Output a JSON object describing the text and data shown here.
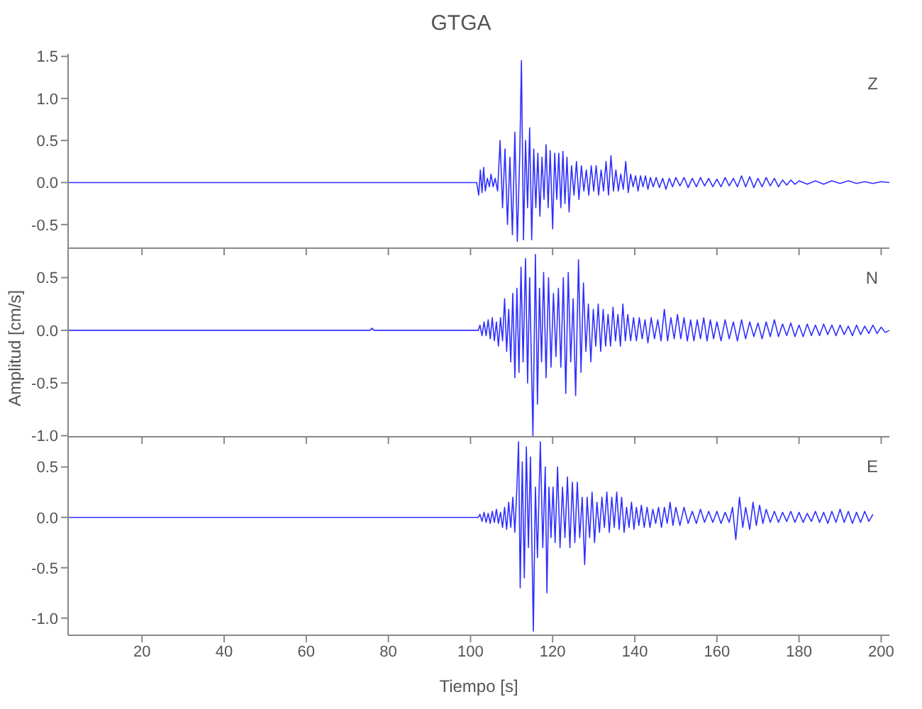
{
  "chart_data": [
    {
      "type": "line",
      "title": "GTGA",
      "xlim": [
        2,
        202
      ],
      "xticks": [
        20,
        40,
        60,
        80,
        100,
        120,
        140,
        160,
        180,
        200
      ],
      "ylim": [
        -0.78,
        1.53
      ],
      "yticks": [
        {
          "value": -0.5,
          "label": "-0.5"
        },
        {
          "value": 0,
          "label": "0.0"
        },
        {
          "value": 0.5,
          "label": "0.5"
        },
        {
          "value": 1,
          "label": "1.0"
        },
        {
          "value": 1.5,
          "label": "1.5"
        }
      ],
      "tick_labels": "y",
      "grid": false,
      "legend": false,
      "marker": "none",
      "series": [
        {
          "name": "Z",
          "color": "#2f2fff",
          "x": [
            2,
            50,
            101.5,
            102.0,
            102.4,
            102.8,
            103.2,
            103.6,
            104.1,
            104.6,
            105.0,
            105.5,
            106.0,
            106.6,
            107.2,
            107.8,
            108.4,
            109.0,
            109.6,
            110.2,
            110.8,
            111.4,
            112.0,
            112.4,
            112.9,
            113.4,
            113.9,
            114.4,
            114.9,
            115.4,
            115.9,
            116.4,
            116.9,
            117.4,
            117.9,
            118.4,
            118.9,
            119.4,
            120.0,
            120.5,
            121.0,
            121.5,
            122.0,
            122.5,
            123.0,
            123.5,
            124.0,
            124.6,
            125.2,
            125.8,
            126.4,
            127.0,
            127.6,
            128.2,
            128.8,
            129.4,
            130.0,
            130.6,
            131.2,
            131.8,
            132.4,
            133.0,
            133.6,
            134.2,
            134.8,
            135.4,
            136.0,
            136.6,
            137.2,
            137.8,
            138.4,
            139.0,
            139.6,
            140.2,
            140.8,
            141.4,
            142.0,
            142.6,
            143.2,
            143.8,
            144.5,
            145.2,
            146,
            146.8,
            147.6,
            148.4,
            149.2,
            150,
            151,
            152,
            153,
            154,
            155,
            156,
            157,
            158,
            159,
            160,
            161,
            162,
            163,
            164,
            165,
            166,
            167,
            168,
            169,
            170,
            171,
            172,
            173,
            174,
            175,
            176,
            177,
            178,
            179,
            180,
            182,
            184,
            186,
            188,
            190,
            192,
            194,
            196,
            198,
            200,
            202
          ],
          "values": [
            0,
            0,
            0,
            -0.15,
            0.15,
            -0.12,
            0.18,
            -0.1,
            0.05,
            -0.05,
            0.1,
            -0.05,
            0.05,
            -0.1,
            0.5,
            -0.3,
            0.4,
            -0.5,
            0.3,
            -0.62,
            0.6,
            -0.7,
            0.35,
            1.45,
            -0.68,
            0.5,
            -0.3,
            0.65,
            -0.68,
            0.4,
            -0.3,
            0.35,
            -0.4,
            0.3,
            -0.2,
            0.45,
            -0.3,
            0.38,
            -0.55,
            0.35,
            -0.2,
            0.35,
            -0.3,
            0.37,
            -0.25,
            0.3,
            -0.35,
            0.2,
            -0.15,
            0.25,
            -0.2,
            0.2,
            -0.1,
            0.15,
            -0.15,
            0.2,
            -0.1,
            0.2,
            -0.15,
            0.15,
            -0.1,
            0.25,
            -0.15,
            0.32,
            -0.1,
            0.15,
            -0.1,
            0.1,
            -0.08,
            0.25,
            -0.12,
            0.1,
            -0.05,
            0.08,
            -0.1,
            0.08,
            -0.05,
            0.08,
            -0.08,
            0.06,
            -0.05,
            0.06,
            -0.06,
            0.05,
            -0.08,
            0.05,
            -0.05,
            0.06,
            -0.04,
            0.06,
            -0.06,
            0.05,
            -0.05,
            0.06,
            -0.04,
            0.05,
            -0.05,
            0.04,
            -0.05,
            0.06,
            -0.04,
            0.05,
            -0.05,
            0.08,
            -0.05,
            0.07,
            -0.06,
            0.05,
            -0.05,
            0.06,
            -0.04,
            0.05,
            -0.05,
            0.03,
            -0.03,
            0.03,
            -0.02,
            0.02,
            -0.02,
            0.02,
            -0.02,
            0.02,
            -0.01,
            0.02,
            -0.01,
            0.01,
            -0.01,
            0.01,
            0
          ]
        }
      ]
    },
    {
      "type": "line",
      "ylabel": "Amplitud [cm/s]",
      "xlim": [
        2,
        202
      ],
      "xticks": [
        20,
        40,
        60,
        80,
        100,
        120,
        140,
        160,
        180,
        200
      ],
      "ylim": [
        -1.01,
        0.78
      ],
      "yticks": [
        {
          "value": -1,
          "label": "-1.0"
        },
        {
          "value": -0.5,
          "label": "-0.5"
        },
        {
          "value": 0,
          "label": "0.0"
        },
        {
          "value": 0.5,
          "label": "0.5"
        }
      ],
      "tick_labels": "y",
      "grid": false,
      "legend": false,
      "marker": "none",
      "series": [
        {
          "name": "N",
          "color": "#2f2fff",
          "x": [
            2,
            50,
            75.5,
            76,
            76.5,
            101.9,
            102.3,
            102.8,
            103.3,
            103.8,
            104.3,
            104.8,
            105.3,
            105.8,
            106.3,
            106.8,
            107.3,
            107.8,
            108.3,
            108.8,
            109.3,
            109.8,
            110.3,
            110.8,
            111.3,
            111.8,
            112.3,
            112.8,
            113.4,
            113.9,
            114.4,
            115.2,
            115.8,
            116.3,
            116.8,
            117.3,
            117.8,
            118.4,
            119.0,
            119.6,
            120.2,
            120.8,
            121.4,
            122.0,
            122.6,
            123.2,
            123.8,
            124.4,
            125.0,
            125.6,
            126.3,
            126.9,
            127.5,
            128.1,
            128.7,
            129.3,
            129.9,
            130.5,
            131.1,
            131.7,
            132.3,
            132.9,
            133.5,
            134.1,
            134.7,
            135.3,
            135.9,
            136.5,
            137.1,
            137.7,
            138.3,
            139,
            139.7,
            140.4,
            141.1,
            141.8,
            142.5,
            143.2,
            144,
            144.8,
            145.6,
            146.4,
            147.2,
            148,
            148.8,
            149.6,
            150.4,
            151.2,
            152,
            152.8,
            153.6,
            154.4,
            155.2,
            156,
            156.8,
            157.6,
            158.4,
            159.2,
            160,
            161,
            162,
            163,
            164,
            165,
            166,
            167,
            168,
            169,
            170,
            171,
            172,
            173,
            174,
            175,
            176,
            177,
            178,
            179,
            180,
            181,
            182,
            183,
            184,
            185,
            186,
            187,
            188,
            189,
            190,
            191,
            192,
            193,
            194,
            195,
            196,
            197,
            198,
            199,
            200,
            201,
            202
          ],
          "values": [
            0,
            0,
            0,
            0.02,
            0,
            0,
            0.05,
            -0.05,
            0.08,
            -0.05,
            0.1,
            -0.08,
            0.12,
            -0.1,
            0.08,
            -0.15,
            0.12,
            -0.1,
            0.3,
            -0.2,
            0.2,
            -0.3,
            0.35,
            -0.45,
            0.4,
            -0.4,
            0.6,
            -0.3,
            0.68,
            -0.5,
            0.5,
            -1.0,
            0.72,
            -0.7,
            0.4,
            -0.3,
            0.55,
            -0.45,
            0.5,
            -0.35,
            0.35,
            -0.25,
            0.4,
            -0.35,
            0.5,
            -0.6,
            0.55,
            -0.3,
            0.3,
            -0.62,
            0.67,
            -0.4,
            0.45,
            -0.2,
            0.25,
            -0.3,
            0.2,
            -0.15,
            0.25,
            -0.2,
            0.2,
            -0.15,
            0.15,
            -0.15,
            0.22,
            -0.1,
            0.15,
            -0.15,
            0.25,
            -0.1,
            0.15,
            -0.1,
            0.12,
            -0.1,
            0.12,
            -0.08,
            0.1,
            -0.12,
            0.12,
            -0.08,
            0.1,
            -0.1,
            0.2,
            -0.1,
            0.12,
            -0.08,
            0.15,
            -0.08,
            0.12,
            -0.1,
            0.1,
            -0.1,
            0.1,
            -0.08,
            0.12,
            -0.1,
            0.1,
            -0.08,
            0.08,
            -0.1,
            0.1,
            -0.08,
            0.08,
            -0.1,
            0.1,
            -0.08,
            0.08,
            -0.06,
            0.07,
            -0.08,
            0.08,
            -0.06,
            0.1,
            -0.06,
            0.06,
            -0.05,
            0.07,
            -0.06,
            0.05,
            -0.06,
            0.06,
            -0.05,
            0.05,
            -0.05,
            0.06,
            -0.04,
            0.05,
            -0.05,
            0.05,
            -0.04,
            0.04,
            -0.05,
            0.05,
            -0.04,
            0.04,
            -0.03,
            0.05,
            -0.03,
            0.03,
            -0.02,
            0
          ]
        }
      ]
    },
    {
      "type": "line",
      "xlabel": "Tiempo [s]",
      "xlim": [
        2,
        202
      ],
      "xticks": [
        20,
        40,
        60,
        80,
        100,
        120,
        140,
        160,
        180,
        200
      ],
      "ylim": [
        -1.17,
        0.8
      ],
      "yticks": [
        {
          "value": -1,
          "label": "-1.0"
        },
        {
          "value": -0.5,
          "label": "-0.5"
        },
        {
          "value": 0,
          "label": "0.0"
        },
        {
          "value": 0.5,
          "label": "0.5"
        }
      ],
      "grid": false,
      "legend": false,
      "marker": "none",
      "series": [
        {
          "name": "E",
          "color": "#2f2fff",
          "x": [
            2,
            50,
            101.9,
            102.3,
            102.8,
            103.3,
            103.8,
            104.3,
            104.8,
            105.3,
            105.8,
            106.3,
            106.8,
            107.3,
            107.8,
            108.3,
            108.8,
            109.3,
            109.8,
            110.3,
            110.8,
            111.3,
            111.7,
            112.1,
            112.6,
            113.1,
            113.6,
            114.1,
            114.6,
            115.3,
            115.8,
            116.3,
            117.0,
            117.6,
            118.2,
            118.6,
            119.1,
            119.6,
            120.1,
            120.6,
            121.2,
            121.8,
            122.4,
            123,
            123.6,
            124.2,
            124.8,
            125.4,
            126,
            126.6,
            127.2,
            127.8,
            128.4,
            129,
            129.6,
            130.2,
            130.8,
            131.4,
            132,
            132.6,
            133.2,
            133.8,
            134.4,
            135,
            135.6,
            136.2,
            136.8,
            137.4,
            138,
            138.6,
            139.2,
            139.8,
            140.4,
            141,
            141.6,
            142.3,
            143,
            143.7,
            144.4,
            145.1,
            145.8,
            146.5,
            147.2,
            147.9,
            148.6,
            149.3,
            150,
            151,
            152,
            153,
            154,
            155,
            156,
            157,
            158,
            159,
            160,
            161,
            162,
            163,
            163.8,
            164.6,
            165.5,
            166.3,
            167,
            168,
            168.8,
            169.6,
            170.4,
            171.2,
            172,
            173,
            174,
            175,
            176,
            177,
            178,
            179,
            180,
            181,
            182,
            183,
            184,
            185,
            186,
            187,
            188,
            189,
            190,
            191,
            192,
            193,
            194,
            195,
            196,
            197,
            198
          ],
          "values": [
            0,
            0,
            0,
            0.03,
            -0.04,
            0.05,
            -0.05,
            0.04,
            -0.06,
            0.06,
            -0.05,
            0.08,
            -0.06,
            0.05,
            -0.1,
            0.1,
            -0.12,
            0.15,
            -0.1,
            0.2,
            -0.15,
            0.3,
            0.75,
            -0.7,
            0.55,
            -0.6,
            0.7,
            -0.3,
            0.6,
            -1.13,
            0.3,
            -0.4,
            0.75,
            -0.3,
            0.5,
            -0.75,
            0.3,
            -0.2,
            0.3,
            -0.25,
            0.5,
            -0.3,
            0.3,
            -0.2,
            0.4,
            -0.3,
            0.35,
            -0.25,
            0.35,
            -0.2,
            0.2,
            -0.47,
            0.2,
            -0.2,
            0.25,
            -0.25,
            0.15,
            -0.15,
            0.2,
            -0.1,
            0.25,
            -0.15,
            0.2,
            -0.1,
            0.25,
            -0.12,
            0.2,
            -0.15,
            0.1,
            -0.1,
            0.15,
            -0.12,
            0.1,
            -0.08,
            0.12,
            -0.1,
            0.1,
            -0.1,
            0.08,
            -0.06,
            0.1,
            -0.1,
            0.1,
            -0.06,
            0.15,
            -0.08,
            0.1,
            -0.08,
            0.1,
            -0.06,
            0.06,
            -0.06,
            0.08,
            -0.05,
            0.06,
            -0.05,
            0.06,
            -0.06,
            0.05,
            -0.05,
            0.1,
            -0.22,
            0.2,
            -0.1,
            0.1,
            -0.12,
            0.15,
            -0.08,
            0.12,
            -0.06,
            0.08,
            -0.05,
            0.06,
            -0.05,
            0.05,
            -0.04,
            0.06,
            -0.05,
            0.05,
            -0.05,
            0.04,
            -0.04,
            0.06,
            -0.05,
            0.05,
            -0.06,
            0.06,
            -0.05,
            0.08,
            -0.05,
            0.06,
            -0.06,
            0.05,
            -0.05,
            0.06,
            -0.04,
            0.03
          ]
        }
      ]
    }
  ]
}
